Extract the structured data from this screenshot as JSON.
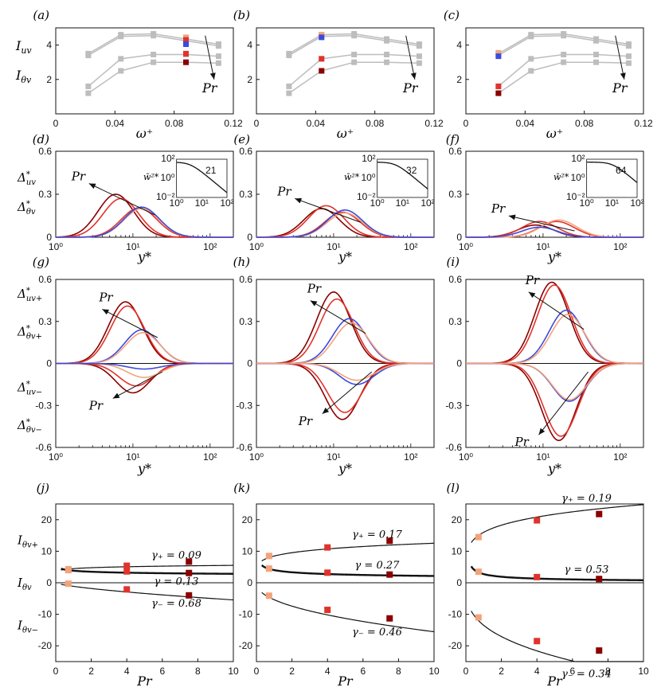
{
  "colors": {
    "grey": "#bdbdbd",
    "dark": "#8b0000",
    "red": "#e0332b",
    "salmon": "#f4a27a",
    "blue": "#3b4bdb",
    "black": "#111111"
  },
  "chart_data": [
    {
      "id": "a",
      "type": "line",
      "panel_label": "(a)",
      "xlabel": "ω⁺",
      "ylabel_top": "I_uv",
      "ylabel_bottom": "I_θv",
      "annotation": "Pr",
      "xlim": [
        0,
        0.12
      ],
      "ylim": [
        0,
        5
      ],
      "xticks": [
        0,
        0.04,
        0.08,
        0.12
      ],
      "xtick_labels": [
        "0",
        "0.04",
        "0.08",
        "0.12"
      ],
      "yticks": [
        2,
        4
      ],
      "ytick_labels": [
        "2",
        "4"
      ],
      "x": [
        0.022,
        0.044,
        0.066,
        0.088,
        0.11
      ],
      "grey_series": [
        [
          3.4,
          4.5,
          4.55,
          4.25,
          3.95
        ],
        [
          3.5,
          4.6,
          4.65,
          4.35,
          4.05
        ],
        [
          1.6,
          3.2,
          3.45,
          3.45,
          3.35
        ],
        [
          1.2,
          2.5,
          3.0,
          3.0,
          2.95
        ]
      ],
      "highlight_x": 0.088,
      "highlight": [
        {
          "c": "salmon",
          "y": 4.45
        },
        {
          "c": "red",
          "y": 4.3
        },
        {
          "c": "blue",
          "y": 4.05
        },
        {
          "c": "red",
          "y": 3.5
        },
        {
          "c": "dark",
          "y": 3.0
        }
      ]
    },
    {
      "id": "b",
      "type": "line",
      "panel_label": "(b)",
      "xlabel": "ω⁺",
      "ylabel_top": "",
      "ylabel_bottom": "",
      "annotation": "Pr",
      "xlim": [
        0,
        0.12
      ],
      "ylim": [
        0,
        5
      ],
      "xticks": [
        0,
        0.04,
        0.08,
        0.12
      ],
      "xtick_labels": [
        "0",
        "0.04",
        "0.08",
        "0.12"
      ],
      "yticks": [
        2,
        4
      ],
      "ytick_labels": [
        "2",
        "4"
      ],
      "x": [
        0.022,
        0.044,
        0.066,
        0.088,
        0.11
      ],
      "grey_series": [
        [
          3.4,
          4.5,
          4.55,
          4.25,
          3.95
        ],
        [
          3.5,
          4.6,
          4.65,
          4.35,
          4.05
        ],
        [
          1.6,
          3.2,
          3.45,
          3.45,
          3.35
        ],
        [
          1.2,
          2.5,
          3.0,
          3.0,
          2.95
        ]
      ],
      "highlight_x": 0.044,
      "highlight": [
        {
          "c": "salmon",
          "y": 4.6
        },
        {
          "c": "blue",
          "y": 4.45
        },
        {
          "c": "red",
          "y": 3.2
        },
        {
          "c": "dark",
          "y": 2.5
        }
      ]
    },
    {
      "id": "c",
      "type": "line",
      "panel_label": "(c)",
      "xlabel": "ω⁺",
      "ylabel_top": "",
      "ylabel_bottom": "",
      "annotation": "Pr",
      "xlim": [
        0,
        0.12
      ],
      "ylim": [
        0,
        5
      ],
      "xticks": [
        0,
        0.04,
        0.08,
        0.12
      ],
      "xtick_labels": [
        "0",
        "0.04",
        "0.08",
        "0.12"
      ],
      "yticks": [
        2,
        4
      ],
      "ytick_labels": [
        "2",
        "4"
      ],
      "x": [
        0.022,
        0.044,
        0.066,
        0.088,
        0.11
      ],
      "grey_series": [
        [
          3.4,
          4.5,
          4.55,
          4.25,
          3.95
        ],
        [
          3.5,
          4.6,
          4.65,
          4.35,
          4.05
        ],
        [
          1.6,
          3.2,
          3.45,
          3.45,
          3.35
        ],
        [
          1.2,
          2.5,
          3.0,
          3.0,
          2.95
        ]
      ],
      "highlight_x": 0.022,
      "highlight": [
        {
          "c": "salmon",
          "y": 3.55
        },
        {
          "c": "blue",
          "y": 3.35
        },
        {
          "c": "red",
          "y": 1.6
        },
        {
          "c": "dark",
          "y": 1.2
        }
      ]
    },
    {
      "id": "d",
      "type": "line",
      "panel_label": "(d)",
      "xlabel": "y*",
      "ylabel_top": "Δ*_uv",
      "ylabel_bottom": "Δ*_θv",
      "annotation": "Pr",
      "xscale": "log",
      "xlim": [
        1,
        200
      ],
      "ylim": [
        0,
        0.6
      ],
      "xticks": [
        1,
        10,
        100
      ],
      "xtick_labels": [
        "10⁰",
        "10¹",
        "10²"
      ],
      "yticks": [
        0,
        0.3,
        0.6
      ],
      "ytick_labels": [
        "0",
        "0.3",
        "0.6"
      ],
      "curves": [
        {
          "c": "dark",
          "peak": 0.3,
          "ypk": 6
        },
        {
          "c": "red",
          "peak": 0.27,
          "ypk": 7
        },
        {
          "c": "red",
          "peak": 0.205,
          "ypk": 12
        },
        {
          "c": "salmon",
          "peak": 0.2,
          "ypk": 13
        },
        {
          "c": "blue",
          "peak": 0.21,
          "ypk": 13
        }
      ],
      "inset": {
        "label": "21",
        "ylabel": "w̄²*",
        "xlim": [
          1,
          100
        ],
        "ylim": [
          0.01,
          100
        ],
        "xtick_labels": [
          "10⁰",
          "10¹",
          "10²"
        ],
        "ytick_labels": [
          "10⁻²",
          "10⁰",
          "10²"
        ],
        "decay_x": 21
      }
    },
    {
      "id": "e",
      "type": "line",
      "panel_label": "(e)",
      "xlabel": "y*",
      "ylabel_top": "",
      "ylabel_bottom": "",
      "annotation": "Pr",
      "xscale": "log",
      "xlim": [
        1,
        200
      ],
      "ylim": [
        0,
        0.6
      ],
      "xticks": [
        1,
        10,
        100
      ],
      "xtick_labels": [
        "10⁰",
        "10¹",
        "10²"
      ],
      "yticks": [
        0,
        0.3,
        0.6
      ],
      "ytick_labels": [
        "0",
        "0.3",
        "0.6"
      ],
      "curves": [
        {
          "c": "dark",
          "peak": 0.2,
          "ypk": 7
        },
        {
          "c": "red",
          "peak": 0.22,
          "ypk": 8
        },
        {
          "c": "red",
          "peak": 0.175,
          "ypk": 13
        },
        {
          "c": "salmon",
          "peak": 0.17,
          "ypk": 14
        },
        {
          "c": "blue",
          "peak": 0.19,
          "ypk": 14
        }
      ],
      "inset": {
        "label": "32",
        "ylabel": "w̄²*",
        "xlim": [
          1,
          100
        ],
        "ylim": [
          0.01,
          100
        ],
        "xtick_labels": [
          "10⁰",
          "10¹",
          "10²"
        ],
        "ytick_labels": [
          "10⁻²",
          "10⁰",
          "10²"
        ],
        "decay_x": 32
      }
    },
    {
      "id": "f",
      "type": "line",
      "panel_label": "(f)",
      "xlabel": "y*",
      "ylabel_top": "",
      "ylabel_bottom": "",
      "annotation": "Pr",
      "xscale": "log",
      "xlim": [
        1,
        200
      ],
      "ylim": [
        0,
        0.6
      ],
      "xticks": [
        1,
        10,
        100
      ],
      "xtick_labels": [
        "10⁰",
        "10¹",
        "10²"
      ],
      "yticks": [
        0,
        0.3,
        0.6
      ],
      "ytick_labels": [
        "0",
        "0.3",
        "0.6"
      ],
      "curves": [
        {
          "c": "dark",
          "peak": 0.085,
          "ypk": 8
        },
        {
          "c": "red",
          "peak": 0.11,
          "ypk": 9
        },
        {
          "c": "red",
          "peak": 0.11,
          "ypk": 15
        },
        {
          "c": "salmon",
          "peak": 0.12,
          "ypk": 16
        },
        {
          "c": "blue",
          "peak": 0.07,
          "ypk": 9
        }
      ],
      "inset": {
        "label": "64",
        "ylabel": "w̄²*",
        "xlim": [
          1,
          100
        ],
        "ylim": [
          0.01,
          100
        ],
        "xtick_labels": [
          "10⁰",
          "10¹",
          "10²"
        ],
        "ytick_labels": [
          "10⁻²",
          "10⁰",
          "10²"
        ],
        "decay_x": 64
      }
    },
    {
      "id": "g",
      "type": "line",
      "panel_label": "(g)",
      "xlabel": "y*",
      "ylabels": [
        "Δ*_uv+",
        "Δ*_θv+",
        "Δ*_uv−",
        "Δ*_θv−"
      ],
      "annotation_top": "Pr",
      "annotation_bottom": "Pr",
      "xscale": "log",
      "xlim": [
        1,
        200
      ],
      "ylim": [
        -0.6,
        0.6
      ],
      "xticks": [
        1,
        10,
        100
      ],
      "xtick_labels": [
        "10⁰",
        "10¹",
        "10²"
      ],
      "yticks": [
        -0.6,
        -0.3,
        0,
        0.3,
        0.6
      ],
      "ytick_labels": [
        "-0.6",
        "-0.3",
        "0",
        "0.3",
        "0.6"
      ],
      "pos": [
        {
          "c": "dark",
          "peak": 0.44,
          "ypk": 8
        },
        {
          "c": "red",
          "peak": 0.41,
          "ypk": 8.5
        },
        {
          "c": "blue",
          "peak": 0.24,
          "ypk": 13
        },
        {
          "c": "salmon",
          "peak": 0.22,
          "ypk": 13.5
        }
      ],
      "neg": [
        {
          "c": "dark",
          "peak": -0.21,
          "ypk": 10
        },
        {
          "c": "red",
          "peak": -0.16,
          "ypk": 11
        },
        {
          "c": "salmon",
          "peak": -0.1,
          "ypk": 14
        },
        {
          "c": "blue",
          "peak": -0.04,
          "ypk": 14
        }
      ]
    },
    {
      "id": "h",
      "type": "line",
      "panel_label": "(h)",
      "xlabel": "y*",
      "annotation_top": "Pr",
      "annotation_bottom": "Pr",
      "xscale": "log",
      "xlim": [
        1,
        200
      ],
      "ylim": [
        -0.6,
        0.6
      ],
      "xticks": [
        1,
        10,
        100
      ],
      "xtick_labels": [
        "10⁰",
        "10¹",
        "10²"
      ],
      "yticks": [
        -0.6,
        -0.3,
        0,
        0.3,
        0.6
      ],
      "ytick_labels": [
        "-0.6",
        "-0.3",
        "0",
        "0.3",
        "0.6"
      ],
      "pos": [
        {
          "c": "dark",
          "peak": 0.51,
          "ypk": 10
        },
        {
          "c": "red",
          "peak": 0.46,
          "ypk": 11
        },
        {
          "c": "blue",
          "peak": 0.32,
          "ypk": 16
        },
        {
          "c": "salmon",
          "peak": 0.29,
          "ypk": 17
        }
      ],
      "neg": [
        {
          "c": "dark",
          "peak": -0.4,
          "ypk": 13
        },
        {
          "c": "red",
          "peak": -0.35,
          "ypk": 14
        },
        {
          "c": "blue",
          "peak": -0.15,
          "ypk": 20
        },
        {
          "c": "salmon",
          "peak": -0.12,
          "ypk": 20
        }
      ]
    },
    {
      "id": "i",
      "type": "line",
      "panel_label": "(i)",
      "xlabel": "y*",
      "annotation_top": "Pr",
      "annotation_bottom": "Pr",
      "xscale": "log",
      "xlim": [
        1,
        200
      ],
      "ylim": [
        -0.6,
        0.6
      ],
      "xticks": [
        1,
        10,
        100
      ],
      "xtick_labels": [
        "10⁰",
        "10¹",
        "10²"
      ],
      "yticks": [
        -0.6,
        -0.3,
        0,
        0.3,
        0.6
      ],
      "ytick_labels": [
        "-0.6",
        "-0.3",
        "0",
        "0.3",
        "0.6"
      ],
      "pos": [
        {
          "c": "dark",
          "peak": 0.58,
          "ypk": 13
        },
        {
          "c": "red",
          "peak": 0.56,
          "ypk": 14
        },
        {
          "c": "blue",
          "peak": 0.38,
          "ypk": 20
        },
        {
          "c": "salmon",
          "peak": 0.35,
          "ypk": 21
        }
      ],
      "neg": [
        {
          "c": "dark",
          "peak": -0.55,
          "ypk": 16
        },
        {
          "c": "red",
          "peak": -0.52,
          "ypk": 17
        },
        {
          "c": "blue",
          "peak": -0.27,
          "ypk": 22
        },
        {
          "c": "salmon",
          "peak": -0.26,
          "ypk": 22
        }
      ]
    },
    {
      "id": "j",
      "type": "scatter",
      "panel_label": "(j)",
      "xlabel": "Pr",
      "ylabels": [
        "I_θv+",
        "I_θv",
        "I_θv−"
      ],
      "xlim": [
        0,
        10
      ],
      "ylim": [
        -25,
        25
      ],
      "xticks": [
        0,
        2,
        4,
        6,
        8,
        10
      ],
      "xtick_labels": [
        "0",
        "2",
        "4",
        "6",
        "8",
        "10"
      ],
      "yticks": [
        -20,
        -10,
        0,
        10,
        20
      ],
      "ytick_labels": [
        "-20",
        "-10",
        "0",
        "10",
        "20"
      ],
      "points": [
        {
          "c": "salmon",
          "x": 0.71,
          "y": 4.3
        },
        {
          "c": "red",
          "x": 4,
          "y": 5.4
        },
        {
          "c": "dark",
          "x": 7.5,
          "y": 6.7
        },
        {
          "c": "salmon",
          "x": 0.71,
          "y": 4.0
        },
        {
          "c": "red",
          "x": 4,
          "y": 3.6
        },
        {
          "c": "dark",
          "x": 7.5,
          "y": 3.1
        },
        {
          "c": "salmon",
          "x": 0.71,
          "y": -0.3
        },
        {
          "c": "red",
          "x": 4,
          "y": -2.1
        },
        {
          "c": "dark",
          "x": 7.5,
          "y": -4.0
        }
      ],
      "fits": [
        {
          "name": "plus",
          "a": 4.35,
          "g": 0.09,
          "sign": 1,
          "label": "γ₊ = 0.09"
        },
        {
          "name": "mid",
          "a": 4.0,
          "g": 0.13,
          "sign": -1,
          "label": "γ = 0.13"
        },
        {
          "name": "minus",
          "a": -0.9,
          "g": 0.68,
          "sign": 1,
          "label": "γ₋ = 0.68"
        }
      ]
    },
    {
      "id": "k",
      "type": "scatter",
      "panel_label": "(k)",
      "xlabel": "Pr",
      "xlim": [
        0,
        10
      ],
      "ylim": [
        -25,
        25
      ],
      "xticks": [
        0,
        2,
        4,
        6,
        8,
        10
      ],
      "xtick_labels": [
        "0",
        "2",
        "4",
        "6",
        "8",
        "10"
      ],
      "yticks": [
        -20,
        -10,
        0,
        10,
        20
      ],
      "ytick_labels": [
        "-20",
        "-10",
        "0",
        "10",
        "20"
      ],
      "points": [
        {
          "c": "salmon",
          "x": 0.71,
          "y": 8.5
        },
        {
          "c": "red",
          "x": 4,
          "y": 11.2
        },
        {
          "c": "dark",
          "x": 7.5,
          "y": 13.3
        },
        {
          "c": "salmon",
          "x": 0.71,
          "y": 4.5
        },
        {
          "c": "red",
          "x": 4,
          "y": 3.2
        },
        {
          "c": "dark",
          "x": 7.5,
          "y": 2.6
        },
        {
          "c": "salmon",
          "x": 0.71,
          "y": -4.1
        },
        {
          "c": "red",
          "x": 4,
          "y": -8.6
        },
        {
          "c": "dark",
          "x": 7.5,
          "y": -11.3
        }
      ],
      "fits": [
        {
          "name": "plus",
          "a": 8.0,
          "g": 0.17,
          "sign": 1,
          "label": "γ₊ = 0.17"
        },
        {
          "name": "mid",
          "a": 4.4,
          "g": 0.27,
          "sign": -1,
          "label": "γ = 0.27"
        },
        {
          "name": "minus",
          "a": -4.6,
          "g": 0.46,
          "sign": 1,
          "label": "γ₋ = 0.46"
        }
      ]
    },
    {
      "id": "l",
      "type": "scatter",
      "panel_label": "(l)",
      "xlabel": "Pr",
      "xlim": [
        0,
        10
      ],
      "ylim": [
        -25,
        25
      ],
      "xticks": [
        0,
        2,
        4,
        6,
        8,
        10
      ],
      "xtick_labels": [
        "0",
        "2",
        "4",
        "6",
        "8",
        "10"
      ],
      "yticks": [
        -20,
        -10,
        0,
        10,
        20
      ],
      "ytick_labels": [
        "-20",
        "-10",
        "0",
        "10",
        "20"
      ],
      "points": [
        {
          "c": "salmon",
          "x": 0.71,
          "y": 14.5
        },
        {
          "c": "red",
          "x": 4,
          "y": 19.8
        },
        {
          "c": "dark",
          "x": 7.5,
          "y": 21.8
        },
        {
          "c": "salmon",
          "x": 0.71,
          "y": 3.5
        },
        {
          "c": "red",
          "x": 4,
          "y": 1.8
        },
        {
          "c": "dark",
          "x": 7.5,
          "y": 1.2
        },
        {
          "c": "salmon",
          "x": 0.71,
          "y": -11
        },
        {
          "c": "red",
          "x": 4,
          "y": -18.5
        },
        {
          "c": "dark",
          "x": 7.5,
          "y": -21.5
        }
      ],
      "fits": [
        {
          "name": "plus",
          "a": 15.0,
          "g": 0.19,
          "sign": 1,
          "label": "γ₊ = 0.19"
        },
        {
          "name": "mid",
          "a": 3.3,
          "g": 0.53,
          "sign": -1,
          "label": "γ = 0.53"
        },
        {
          "name": "minus",
          "a": -12.0,
          "g": 0.34,
          "sign": 1,
          "label": "γ₋ = 0.34"
        }
      ]
    }
  ]
}
